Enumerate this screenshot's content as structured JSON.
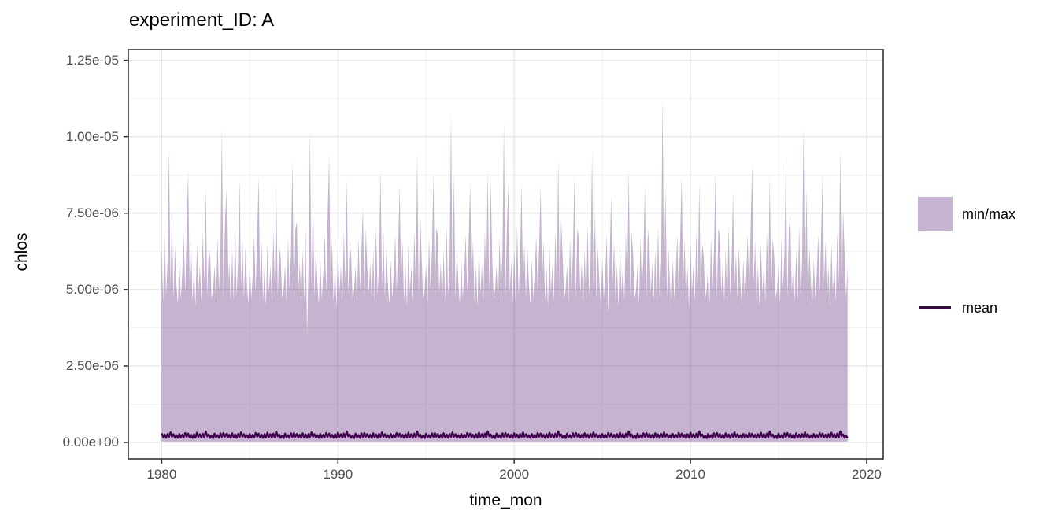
{
  "title": "experiment_ID: A",
  "axes": {
    "x_label": "time_mon",
    "y_label": "chlos",
    "x_ticks": [
      {
        "year": 1980,
        "label": "1980"
      },
      {
        "year": 1990,
        "label": "1990"
      },
      {
        "year": 2000,
        "label": "2000"
      },
      {
        "year": 2010,
        "label": "2010"
      },
      {
        "year": 2020,
        "label": "2020"
      }
    ],
    "y_ticks": [
      {
        "e8": 0,
        "label": "0.00e+00"
      },
      {
        "e8": 250,
        "label": "2.50e-06"
      },
      {
        "e8": 500,
        "label": "5.00e-06"
      },
      {
        "e8": 750,
        "label": "7.50e-06"
      },
      {
        "e8": 1000,
        "label": "1.00e-05"
      },
      {
        "e8": 1250,
        "label": "1.25e-05"
      }
    ]
  },
  "legend": [
    {
      "type": "fill",
      "label": "min/max",
      "color": "#c6b2d1"
    },
    {
      "type": "line",
      "label": "mean",
      "color": "#440154"
    }
  ],
  "chart_data": {
    "type": "area",
    "description": "Monthly min/max ribbon with mean line of chlos, Jan 1980 - Dec 2018",
    "x_start_year": 1980,
    "points_per_year": 12,
    "n_points": 468,
    "x_range_years": [
      1978.106,
      2020.94
    ],
    "y_range_e8": [
      -54,
      1285
    ],
    "colors": {
      "ribbon": "rgba(64,4,96,0.30)",
      "ribbon_solid": "#c6b2d1",
      "mean_line": "#440154"
    },
    "grid": {
      "major_color": "#e3e3e3",
      "minor_color": "#f2f2f2",
      "x_minor_years": [
        1985,
        1995,
        2005,
        2015
      ],
      "y_minor_e8": [
        125,
        375,
        625,
        875,
        1125
      ]
    },
    "series": [
      {
        "name": "max",
        "unit": "1e-7",
        "values": [
          63,
          46,
          71,
          48,
          59,
          96,
          51,
          76,
          47,
          64,
          52,
          45,
          60,
          47,
          55,
          68,
          49,
          69,
          89,
          52,
          66,
          46,
          58,
          44,
          65,
          49,
          58,
          46,
          69,
          52,
          83,
          48,
          63,
          61,
          47,
          50,
          58,
          45,
          67,
          50,
          62,
          103,
          47,
          70,
          83,
          49,
          59,
          46,
          63,
          46,
          71,
          48,
          59,
          86,
          51,
          66,
          47,
          64,
          52,
          45,
          60,
          47,
          55,
          68,
          49,
          67,
          87,
          52,
          66,
          46,
          58,
          44,
          65,
          49,
          58,
          46,
          69,
          52,
          84,
          48,
          64,
          61,
          47,
          50,
          58,
          45,
          67,
          50,
          62,
          92,
          47,
          70,
          72,
          49,
          59,
          46,
          63,
          46,
          71,
          35,
          59,
          102,
          51,
          82,
          47,
          64,
          52,
          45,
          60,
          47,
          55,
          68,
          49,
          74,
          94,
          52,
          66,
          46,
          58,
          44,
          65,
          49,
          58,
          46,
          69,
          52,
          86,
          48,
          66,
          61,
          47,
          50,
          58,
          45,
          67,
          50,
          62,
          77,
          47,
          70,
          57,
          49,
          59,
          46,
          63,
          46,
          71,
          48,
          59,
          89,
          51,
          69,
          47,
          64,
          52,
          45,
          60,
          47,
          55,
          68,
          49,
          64,
          84,
          52,
          66,
          46,
          58,
          44,
          65,
          49,
          58,
          46,
          69,
          52,
          95,
          48,
          75,
          61,
          47,
          50,
          58,
          45,
          67,
          50,
          62,
          88,
          47,
          70,
          68,
          49,
          59,
          46,
          63,
          46,
          71,
          48,
          59,
          108,
          51,
          88,
          47,
          64,
          52,
          45,
          60,
          47,
          55,
          68,
          49,
          65,
          85,
          52,
          66,
          46,
          58,
          44,
          65,
          49,
          58,
          46,
          69,
          52,
          89,
          48,
          86,
          61,
          47,
          50,
          58,
          45,
          67,
          50,
          62,
          105,
          47,
          70,
          85,
          49,
          59,
          46,
          63,
          46,
          71,
          48,
          59,
          85,
          51,
          65,
          47,
          64,
          52,
          45,
          60,
          47,
          55,
          68,
          49,
          64,
          84,
          52,
          66,
          46,
          58,
          44,
          65,
          49,
          58,
          46,
          69,
          52,
          93,
          48,
          73,
          61,
          47,
          50,
          58,
          45,
          67,
          50,
          62,
          87,
          47,
          70,
          67,
          49,
          59,
          46,
          63,
          46,
          71,
          48,
          59,
          95,
          51,
          75,
          47,
          64,
          52,
          45,
          60,
          47,
          55,
          68,
          42,
          61,
          81,
          52,
          66,
          46,
          58,
          44,
          65,
          49,
          58,
          46,
          69,
          52,
          89,
          48,
          69,
          61,
          47,
          50,
          58,
          45,
          67,
          50,
          62,
          84,
          47,
          70,
          64,
          49,
          59,
          46,
          63,
          46,
          71,
          48,
          59,
          113,
          51,
          84,
          47,
          64,
          52,
          45,
          60,
          47,
          55,
          68,
          49,
          67,
          87,
          52,
          66,
          46,
          58,
          44,
          65,
          49,
          58,
          46,
          69,
          52,
          85,
          48,
          65,
          61,
          47,
          50,
          58,
          45,
          67,
          50,
          62,
          88,
          47,
          70,
          68,
          49,
          59,
          46,
          63,
          46,
          71,
          48,
          59,
          82,
          51,
          62,
          47,
          64,
          52,
          45,
          60,
          47,
          55,
          68,
          49,
          71,
          91,
          52,
          66,
          46,
          58,
          44,
          65,
          49,
          58,
          46,
          69,
          52,
          87,
          48,
          67,
          61,
          47,
          50,
          58,
          45,
          67,
          50,
          62,
          94,
          47,
          70,
          74,
          49,
          59,
          46,
          63,
          46,
          71,
          48,
          59,
          103,
          51,
          83,
          47,
          64,
          52,
          45,
          60,
          47,
          55,
          68,
          49,
          68,
          88,
          52,
          66,
          46,
          58,
          44,
          65,
          49,
          58,
          46,
          69,
          52,
          96,
          48,
          76,
          61,
          47,
          58
        ]
      },
      {
        "name": "min",
        "unit": "1e-8",
        "constant": 3
      },
      {
        "name": "mean",
        "unit": "1e-8",
        "pattern": [
          30,
          17,
          26,
          15,
          28,
          18,
          33,
          19,
          27,
          16,
          24,
          15,
          28,
          16,
          25,
          17,
          31,
          19,
          29,
          17,
          25,
          15,
          27,
          16,
          32,
          18,
          27,
          16,
          29,
          17,
          36,
          20,
          26,
          15,
          23,
          14,
          29,
          17,
          24,
          15,
          30,
          18,
          31,
          19,
          28,
          16,
          25,
          15
        ]
      }
    ]
  }
}
